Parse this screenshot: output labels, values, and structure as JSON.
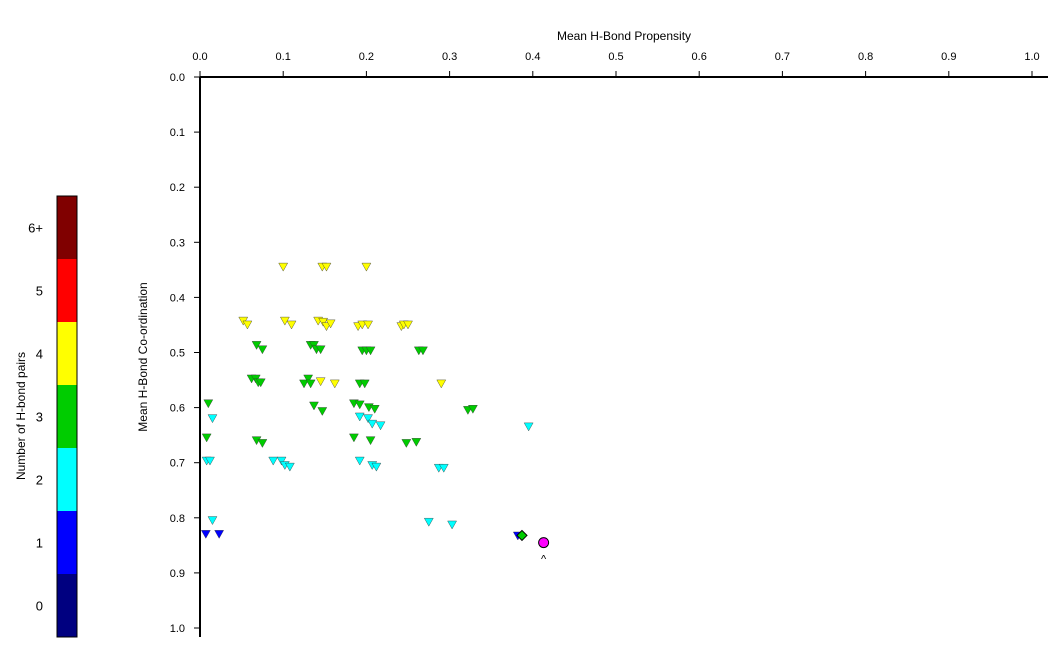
{
  "chart_data": {
    "type": "scatter",
    "title": "",
    "xlabel": "Mean H-Bond Propensity",
    "ylabel": "Mean H-Bond Co-ordination",
    "xlim": [
      0.0,
      1.0
    ],
    "ylim": [
      0.0,
      1.0
    ],
    "x_axis_position": "top",
    "y_axis_inverted": true,
    "grid": false,
    "x_ticks": [
      "0.0",
      "0.1",
      "0.2",
      "0.3",
      "0.4",
      "0.5",
      "0.6",
      "0.7",
      "0.8",
      "0.9",
      "1.0"
    ],
    "y_ticks": [
      "0.0",
      "0.1",
      "0.2",
      "0.3",
      "0.4",
      "0.5",
      "0.6",
      "0.7",
      "0.8",
      "0.9",
      "1.0"
    ],
    "colorbar": {
      "label": "Number of H-bond pairs",
      "position": "left",
      "levels": [
        {
          "label": "0",
          "color": "#000080"
        },
        {
          "label": "1",
          "color": "#0000ff"
        },
        {
          "label": "2",
          "color": "#00ffff"
        },
        {
          "label": "3",
          "color": "#00cc00"
        },
        {
          "label": "4",
          "color": "#ffff00"
        },
        {
          "label": "5",
          "color": "#ff0000"
        },
        {
          "label": "6+",
          "color": "#800000"
        }
      ]
    },
    "series": [
      {
        "pairs": 1,
        "marker": "triangle-down",
        "color": "#0000ff",
        "points": [
          [
            0.007,
            0.83
          ],
          [
            0.023,
            0.83
          ],
          [
            0.382,
            0.833
          ]
        ]
      },
      {
        "pairs": 2,
        "marker": "triangle-down",
        "color": "#00ffff",
        "points": [
          [
            0.008,
            0.697
          ],
          [
            0.012,
            0.697
          ],
          [
            0.015,
            0.62
          ],
          [
            0.015,
            0.805
          ],
          [
            0.088,
            0.697
          ],
          [
            0.098,
            0.697
          ],
          [
            0.102,
            0.705
          ],
          [
            0.108,
            0.708
          ],
          [
            0.192,
            0.617
          ],
          [
            0.192,
            0.697
          ],
          [
            0.202,
            0.62
          ],
          [
            0.207,
            0.63
          ],
          [
            0.207,
            0.705
          ],
          [
            0.212,
            0.708
          ],
          [
            0.217,
            0.633
          ],
          [
            0.275,
            0.808
          ],
          [
            0.287,
            0.71
          ],
          [
            0.293,
            0.71
          ],
          [
            0.303,
            0.813
          ],
          [
            0.395,
            0.635
          ]
        ]
      },
      {
        "pairs": 3,
        "marker": "triangle-down",
        "color": "#00cc00",
        "points": [
          [
            0.01,
            0.593
          ],
          [
            0.008,
            0.655
          ],
          [
            0.062,
            0.548
          ],
          [
            0.067,
            0.548
          ],
          [
            0.07,
            0.555
          ],
          [
            0.073,
            0.555
          ],
          [
            0.068,
            0.487
          ],
          [
            0.075,
            0.495
          ],
          [
            0.068,
            0.66
          ],
          [
            0.075,
            0.665
          ],
          [
            0.125,
            0.557
          ],
          [
            0.13,
            0.548
          ],
          [
            0.133,
            0.557
          ],
          [
            0.133,
            0.487
          ],
          [
            0.137,
            0.487
          ],
          [
            0.14,
            0.495
          ],
          [
            0.145,
            0.495
          ],
          [
            0.137,
            0.597
          ],
          [
            0.147,
            0.607
          ],
          [
            0.185,
            0.593
          ],
          [
            0.185,
            0.655
          ],
          [
            0.192,
            0.595
          ],
          [
            0.192,
            0.557
          ],
          [
            0.198,
            0.557
          ],
          [
            0.195,
            0.497
          ],
          [
            0.2,
            0.497
          ],
          [
            0.205,
            0.497
          ],
          [
            0.203,
            0.6
          ],
          [
            0.21,
            0.603
          ],
          [
            0.205,
            0.66
          ],
          [
            0.248,
            0.665
          ],
          [
            0.26,
            0.663
          ],
          [
            0.263,
            0.497
          ],
          [
            0.268,
            0.497
          ],
          [
            0.322,
            0.605
          ],
          [
            0.328,
            0.603
          ]
        ]
      },
      {
        "pairs": 4,
        "marker": "triangle-down",
        "color": "#ffff00",
        "points": [
          [
            0.1,
            0.345
          ],
          [
            0.147,
            0.345
          ],
          [
            0.152,
            0.345
          ],
          [
            0.2,
            0.345
          ],
          [
            0.052,
            0.443
          ],
          [
            0.057,
            0.45
          ],
          [
            0.102,
            0.443
          ],
          [
            0.11,
            0.45
          ],
          [
            0.142,
            0.443
          ],
          [
            0.148,
            0.445
          ],
          [
            0.152,
            0.453
          ],
          [
            0.157,
            0.448
          ],
          [
            0.19,
            0.453
          ],
          [
            0.195,
            0.45
          ],
          [
            0.202,
            0.45
          ],
          [
            0.242,
            0.453
          ],
          [
            0.245,
            0.45
          ],
          [
            0.25,
            0.45
          ],
          [
            0.145,
            0.553
          ],
          [
            0.162,
            0.557
          ],
          [
            0.29,
            0.557
          ]
        ]
      },
      {
        "name": "",
        "marker": "diamond",
        "color": "#00cc00",
        "points": [
          [
            0.387,
            0.832
          ]
        ]
      },
      {
        "name": "",
        "marker": "circle",
        "color": "#ff00ff",
        "points": [
          [
            0.413,
            0.845
          ]
        ],
        "annotation": "^"
      }
    ]
  }
}
